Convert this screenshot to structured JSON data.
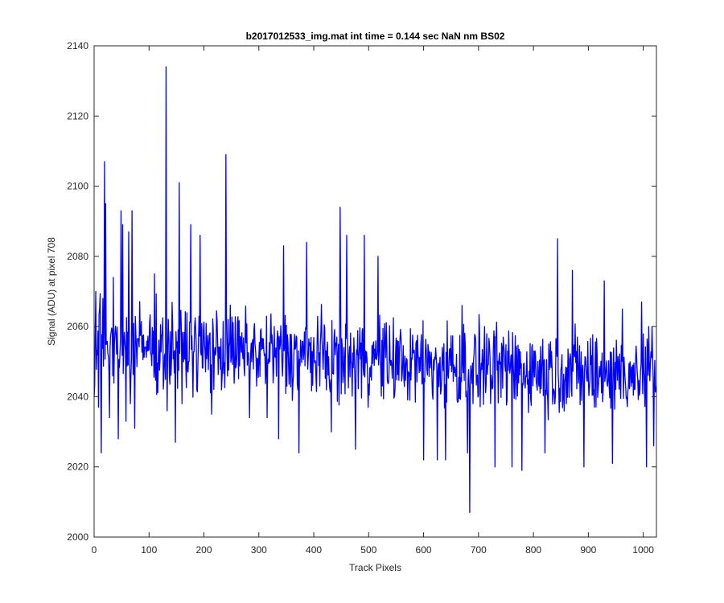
{
  "chart_data": {
    "type": "line",
    "title": "b2017012533_img.mat int time = 0.144 sec  NaN nm BS02",
    "xlabel": "Track Pixels",
    "ylabel": "Signal (ADU) at pixel 708",
    "xlim": [
      0,
      1024
    ],
    "ylim": [
      2000,
      2140
    ],
    "xticks": [
      0,
      100,
      200,
      300,
      400,
      500,
      600,
      700,
      800,
      900,
      1000
    ],
    "yticks": [
      2000,
      2020,
      2040,
      2060,
      2080,
      2100,
      2120,
      2140
    ],
    "grid": false,
    "legend": "none",
    "line_color": "#0000ff",
    "series": [
      {
        "x_start": 0,
        "x_step": 1,
        "count": 1024,
        "trend_start": 2055,
        "trend_end": 2046,
        "noise_amplitude": 11,
        "anchor_points": [
          [
            0,
            2040
          ],
          [
            3,
            2070
          ],
          [
            8,
            2037
          ],
          [
            13,
            2024
          ],
          [
            16,
            2068
          ],
          [
            19,
            2107
          ],
          [
            21,
            2095
          ],
          [
            28,
            2034
          ],
          [
            35,
            2074
          ],
          [
            44,
            2028
          ],
          [
            49,
            2093
          ],
          [
            52,
            2089
          ],
          [
            58,
            2033
          ],
          [
            63,
            2087
          ],
          [
            66,
            2038
          ],
          [
            69,
            2093
          ],
          [
            74,
            2031
          ],
          [
            110,
            2075
          ],
          [
            131,
            2134
          ],
          [
            133,
            2036
          ],
          [
            148,
            2027
          ],
          [
            155,
            2101
          ],
          [
            160,
            2038
          ],
          [
            176,
            2089
          ],
          [
            193,
            2086
          ],
          [
            214,
            2035
          ],
          [
            240,
            2109
          ],
          [
            244,
            2062
          ],
          [
            283,
            2034
          ],
          [
            315,
            2034
          ],
          [
            336,
            2028
          ],
          [
            345,
            2083
          ],
          [
            373,
            2024
          ],
          [
            387,
            2084
          ],
          [
            432,
            2030
          ],
          [
            448,
            2094
          ],
          [
            460,
            2086
          ],
          [
            476,
            2025
          ],
          [
            492,
            2086
          ],
          [
            517,
            2080
          ],
          [
            575,
            2039
          ],
          [
            600,
            2022
          ],
          [
            625,
            2022
          ],
          [
            640,
            2022
          ],
          [
            661,
            2039
          ],
          [
            670,
            2066
          ],
          [
            680,
            2024
          ],
          [
            684,
            2007
          ],
          [
            690,
            2038
          ],
          [
            711,
            2060
          ],
          [
            730,
            2020
          ],
          [
            745,
            2057
          ],
          [
            761,
            2020
          ],
          [
            779,
            2019
          ],
          [
            800,
            2048
          ],
          [
            821,
            2024
          ],
          [
            840,
            2040
          ],
          [
            844,
            2085
          ],
          [
            852,
            2052
          ],
          [
            871,
            2076
          ],
          [
            892,
            2020
          ],
          [
            911,
            2037
          ],
          [
            929,
            2073
          ],
          [
            944,
            2021
          ],
          [
            962,
            2065
          ],
          [
            981,
            2049
          ],
          [
            990,
            2045
          ],
          [
            997,
            2067
          ],
          [
            1006,
            2020
          ],
          [
            1010,
            2060
          ],
          [
            1016,
            2060
          ],
          [
            1019,
            2026
          ],
          [
            1024,
            2045
          ]
        ]
      }
    ]
  }
}
